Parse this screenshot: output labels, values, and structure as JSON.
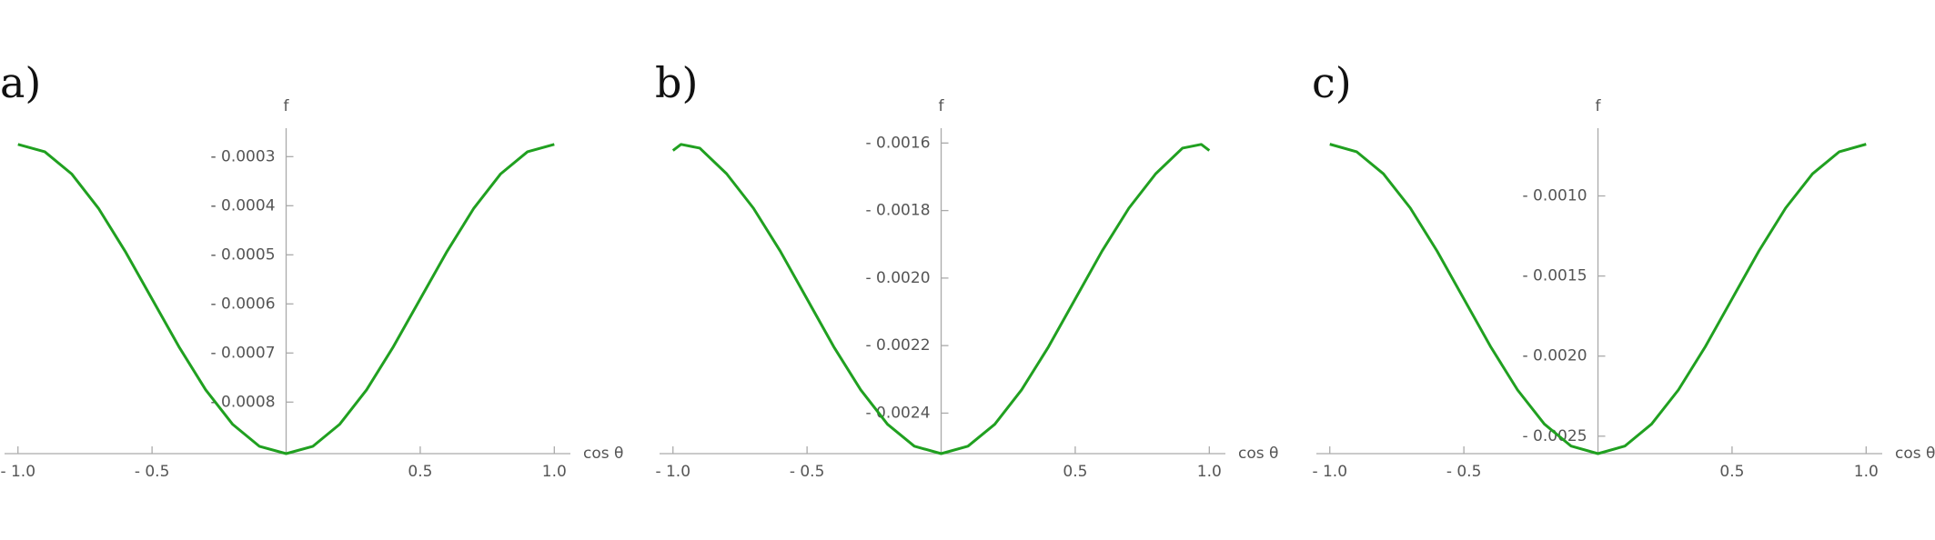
{
  "chart_data": [
    {
      "type": "line",
      "title": "a)",
      "xlabel": "cos θ",
      "ylabel": "f",
      "color": "#20a020",
      "x": [
        -1,
        -0.9,
        -0.8,
        -0.7,
        -0.6,
        -0.5,
        -0.4,
        -0.3,
        -0.2,
        -0.1,
        0,
        0.1,
        0.2,
        0.3,
        0.4,
        0.5,
        0.6,
        0.7,
        0.8,
        0.9,
        1
      ],
      "values": [
        -0.000275,
        -0.00029,
        -0.000335,
        -0.000405,
        -0.000493,
        -0.00059,
        -0.000687,
        -0.000775,
        -0.000845,
        -0.00089,
        -0.000905,
        -0.00089,
        -0.000845,
        -0.000775,
        -0.000687,
        -0.00059,
        -0.000493,
        -0.000405,
        -0.000335,
        -0.00029,
        -0.000275
      ],
      "xlim": [
        -1.05,
        1.06
      ],
      "ylim": [
        -0.000905,
        -0.000242
      ],
      "xticks": [
        {
          "value": -1,
          "label": "- 1.0"
        },
        {
          "value": -0.5,
          "label": "- 0.5"
        },
        0.5,
        {
          "value": 1,
          "label": "1.0"
        }
      ],
      "yticks": [
        {
          "value": -0.0003,
          "label": "- 0.0003"
        },
        {
          "value": -0.0004,
          "label": "- 0.0004"
        },
        {
          "value": -0.0005,
          "label": "- 0.0005"
        },
        {
          "value": -0.0006,
          "label": "- 0.0006"
        },
        {
          "value": -0.0007,
          "label": "- 0.0007"
        },
        {
          "value": -0.0008,
          "label": "- 0.0008"
        }
      ]
    },
    {
      "type": "line",
      "title": "b)",
      "xlabel": "cos θ",
      "ylabel": "f",
      "color": "#20a020",
      "x": [
        -1,
        -0.97,
        -0.9,
        -0.8,
        -0.7,
        -0.6,
        -0.5,
        -0.4,
        -0.3,
        -0.2,
        -0.1,
        0,
        0.1,
        0.2,
        0.3,
        0.4,
        0.5,
        0.6,
        0.7,
        0.8,
        0.9,
        0.97,
        1
      ],
      "values": [
        -0.001622,
        -0.001604,
        -0.001615,
        -0.001691,
        -0.001793,
        -0.00192,
        -0.002062,
        -0.002204,
        -0.002331,
        -0.002433,
        -0.002498,
        -0.00252,
        -0.002498,
        -0.002433,
        -0.002331,
        -0.002204,
        -0.002062,
        -0.00192,
        -0.001793,
        -0.001691,
        -0.001615,
        -0.001604,
        -0.001622
      ],
      "xlim": [
        -1.05,
        1.06
      ],
      "ylim": [
        -0.00252,
        -0.001556
      ],
      "xticks": [
        {
          "value": -1,
          "label": "- 1.0"
        },
        {
          "value": -0.5,
          "label": "- 0.5"
        },
        0.5,
        {
          "value": 1,
          "label": "1.0"
        }
      ],
      "yticks": [
        {
          "value": -0.0016,
          "label": "- 0.0016"
        },
        {
          "value": -0.0018,
          "label": "- 0.0018"
        },
        {
          "value": -0.002,
          "label": "- 0.0020"
        },
        {
          "value": -0.0022,
          "label": "- 0.0022"
        },
        {
          "value": -0.0024,
          "label": "- 0.0024"
        }
      ]
    },
    {
      "type": "line",
      "title": "c)",
      "xlabel": "cos θ",
      "ylabel": "f",
      "color": "#20a020",
      "x": [
        -1,
        -0.9,
        -0.8,
        -0.7,
        -0.6,
        -0.5,
        -0.4,
        -0.3,
        -0.2,
        -0.1,
        0,
        0.1,
        0.2,
        0.3,
        0.4,
        0.5,
        0.6,
        0.7,
        0.8,
        0.9,
        1
      ],
      "values": [
        -0.000677,
        -0.000724,
        -0.000862,
        -0.001075,
        -0.001344,
        -0.001643,
        -0.001942,
        -0.002211,
        -0.002424,
        -0.002562,
        -0.002609,
        -0.002562,
        -0.002424,
        -0.002211,
        -0.001942,
        -0.001643,
        -0.001344,
        -0.001075,
        -0.000862,
        -0.000724,
        -0.000677
      ],
      "xlim": [
        -1.05,
        1.06
      ],
      "ylim": [
        -0.002609,
        -0.000577
      ],
      "xticks": [
        {
          "value": -1,
          "label": "- 1.0"
        },
        {
          "value": -0.5,
          "label": "- 0.5"
        },
        0.5,
        {
          "value": 1,
          "label": "1.0"
        }
      ],
      "yticks": [
        {
          "value": -0.001,
          "label": "- 0.0010"
        },
        {
          "value": -0.0015,
          "label": "- 0.0015"
        },
        {
          "value": -0.002,
          "label": "- 0.0020"
        },
        {
          "value": -0.0025,
          "label": "- 0.0025"
        }
      ]
    }
  ]
}
